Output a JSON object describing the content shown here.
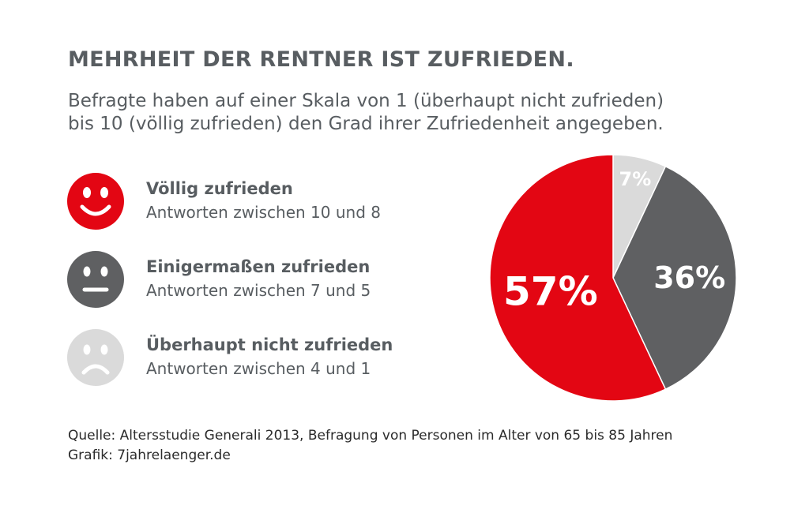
{
  "title": "MEHRHEIT DER RENTNER IST ZUFRIEDEN.",
  "subtitle": {
    "line1": "Befragte haben auf einer Skala von 1 (überhaupt nicht zufrieden)",
    "line2": "bis 10 (völlig zufrieden) den Grad ihrer Zufriedenheit angegeben."
  },
  "legend": [
    {
      "title": "Völlig zufrieden",
      "sub": "Antworten zwischen 10 und 8",
      "color": "#e30613",
      "icon": "happy-face-icon"
    },
    {
      "title": "Einigermaßen zufrieden",
      "sub": "Antworten zwischen 7 und 5",
      "color": "#5f6062",
      "icon": "neutral-face-icon"
    },
    {
      "title": "Überhaupt nicht zufrieden",
      "sub": "Antworten zwischen 4 und 1",
      "color": "#dadada",
      "icon": "sad-face-icon"
    }
  ],
  "chart_data": {
    "type": "pie",
    "categories": [
      "Völlig zufrieden",
      "Einigermaßen zufrieden",
      "Überhaupt nicht zufrieden"
    ],
    "values": [
      57,
      36,
      7
    ],
    "labels": [
      "57%",
      "36%",
      "7%"
    ],
    "colors": [
      "#e30613",
      "#5f6062",
      "#dadada"
    ],
    "title": "",
    "unit": "%"
  },
  "footer": {
    "source": "Quelle: Altersstudie Generali 2013, Befragung von Personen im Alter von 65 bis 85 Jahren",
    "credit": "Grafik: 7jahrelaenger.de"
  }
}
